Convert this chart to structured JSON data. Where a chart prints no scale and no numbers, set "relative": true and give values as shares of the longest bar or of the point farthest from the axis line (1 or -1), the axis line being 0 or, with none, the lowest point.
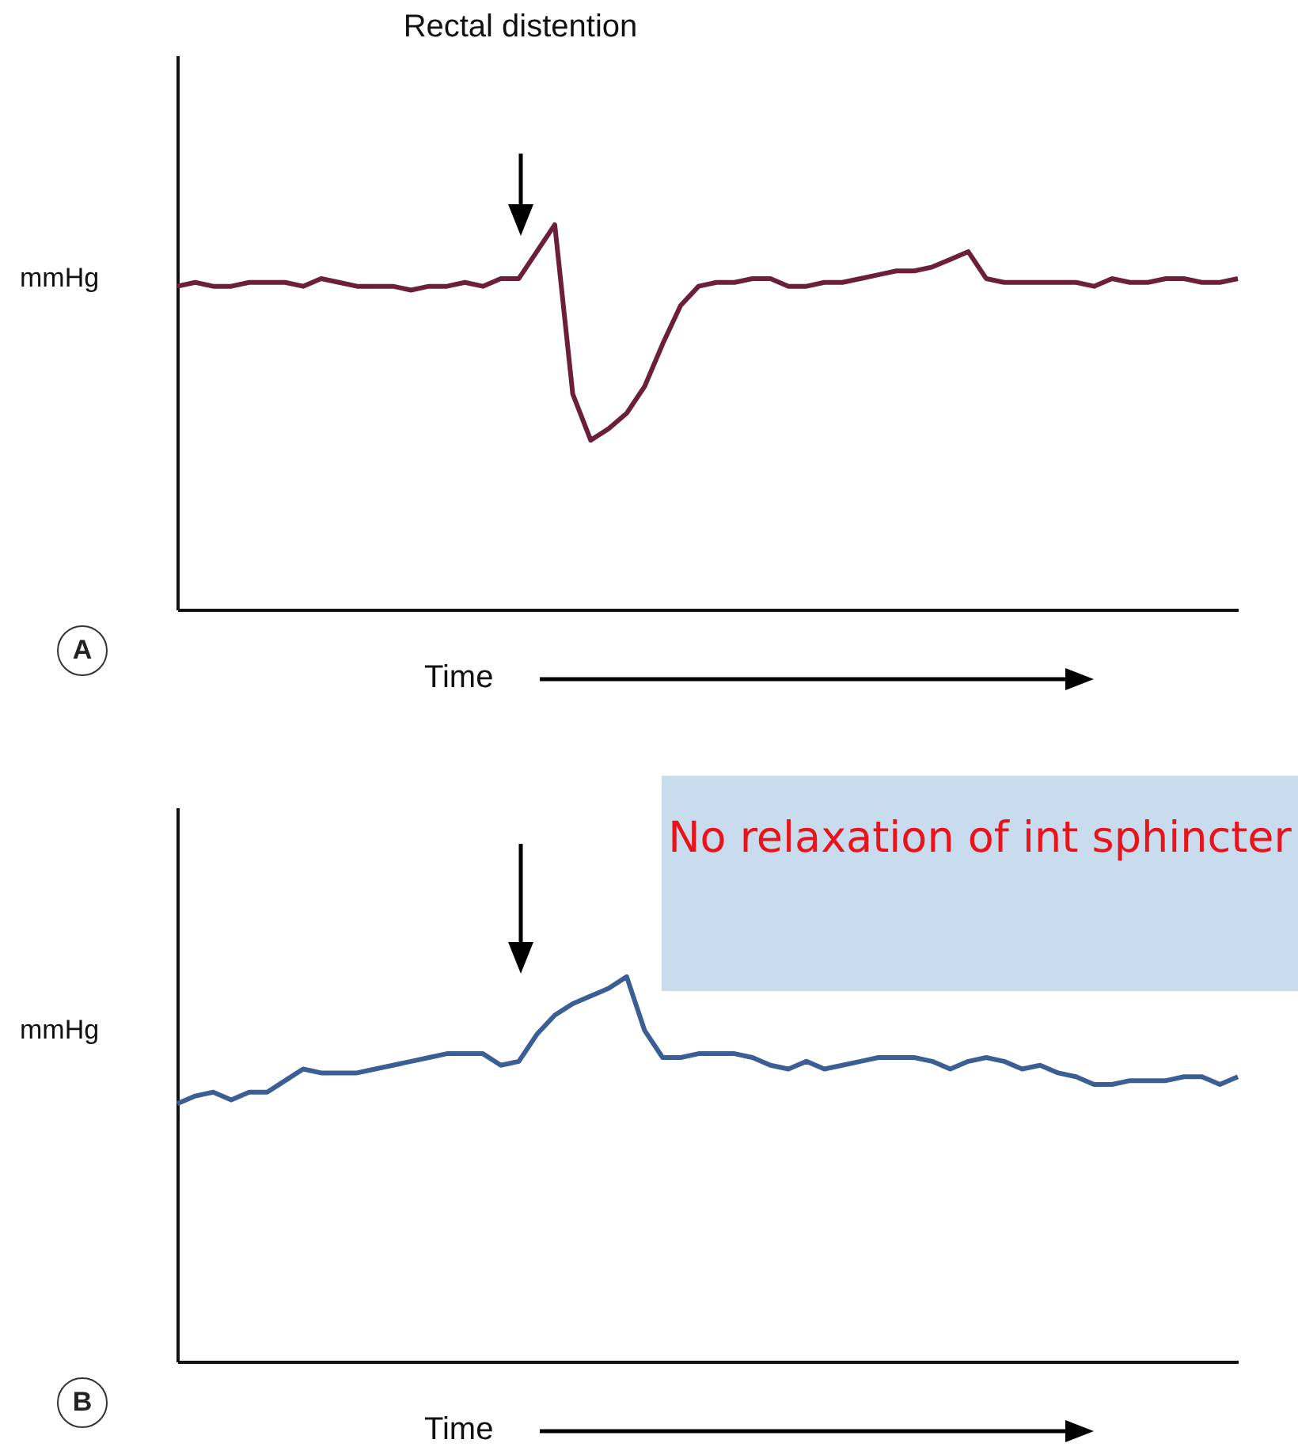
{
  "chart_data": [
    {
      "type": "line",
      "relative": true,
      "xlabel": "Time",
      "ylabel": "mmHg",
      "annotations": [
        "Rectal distention",
        "A"
      ],
      "categories": [
        null,
        null,
        null,
        null,
        null,
        null,
        null,
        null,
        null,
        null,
        null,
        null,
        null,
        null,
        null,
        null,
        null,
        null,
        null,
        null,
        null,
        null,
        null,
        null,
        null,
        null,
        null,
        null,
        null,
        null,
        null,
        null,
        null,
        null,
        null,
        null,
        null,
        null,
        null,
        null,
        null,
        null,
        null,
        null,
        null,
        null,
        null,
        null,
        null,
        null,
        null,
        null,
        null,
        null,
        null,
        null,
        null,
        null,
        null,
        null
      ],
      "series": [
        {
          "color": "#6b1f3a",
          "values": [
            0.84,
            0.85,
            0.84,
            0.84,
            0.85,
            0.85,
            0.85,
            0.84,
            0.86,
            0.85,
            0.84,
            0.84,
            0.84,
            0.83,
            0.84,
            0.84,
            0.85,
            0.84,
            0.86,
            0.86,
            0.93,
            1,
            0.56,
            0.44,
            0.47,
            0.51,
            0.58,
            0.69,
            0.79,
            0.84,
            0.85,
            0.85,
            0.86,
            0.86,
            0.84,
            0.84,
            0.85,
            0.85,
            0.86,
            0.87,
            0.88,
            0.88,
            0.89,
            0.91,
            0.93,
            0.86,
            0.85,
            0.85,
            0.85,
            0.85,
            0.85,
            0.84,
            0.86,
            0.85,
            0.85,
            0.86,
            0.86,
            0.85,
            0.85,
            0.86
          ]
        }
      ]
    },
    {
      "type": "line",
      "relative": true,
      "xlabel": "Time",
      "ylabel": "mmHg",
      "annotations": [
        "B",
        "No relaxation of int sphincter"
      ],
      "categories": [
        null,
        null,
        null,
        null,
        null,
        null,
        null,
        null,
        null,
        null,
        null,
        null,
        null,
        null,
        null,
        null,
        null,
        null,
        null,
        null,
        null,
        null,
        null,
        null,
        null,
        null,
        null,
        null,
        null,
        null,
        null,
        null,
        null,
        null,
        null,
        null,
        null,
        null,
        null,
        null,
        null,
        null,
        null,
        null,
        null,
        null,
        null,
        null,
        null,
        null,
        null,
        null,
        null,
        null,
        null,
        null,
        null,
        null,
        null,
        null
      ],
      "series": [
        {
          "color": "#3b5f95",
          "values": [
            0.67,
            0.69,
            0.7,
            0.68,
            0.7,
            0.7,
            0.73,
            0.76,
            0.75,
            0.75,
            0.75,
            0.76,
            0.77,
            0.78,
            0.79,
            0.8,
            0.8,
            0.8,
            0.77,
            0.78,
            0.85,
            0.9,
            0.93,
            0.95,
            0.97,
            1,
            0.86,
            0.79,
            0.79,
            0.8,
            0.8,
            0.8,
            0.79,
            0.77,
            0.76,
            0.78,
            0.76,
            0.77,
            0.78,
            0.79,
            0.79,
            0.79,
            0.78,
            0.76,
            0.78,
            0.79,
            0.78,
            0.76,
            0.77,
            0.75,
            0.74,
            0.72,
            0.72,
            0.73,
            0.73,
            0.73,
            0.74,
            0.74,
            0.72,
            0.74
          ]
        }
      ]
    }
  ]
}
